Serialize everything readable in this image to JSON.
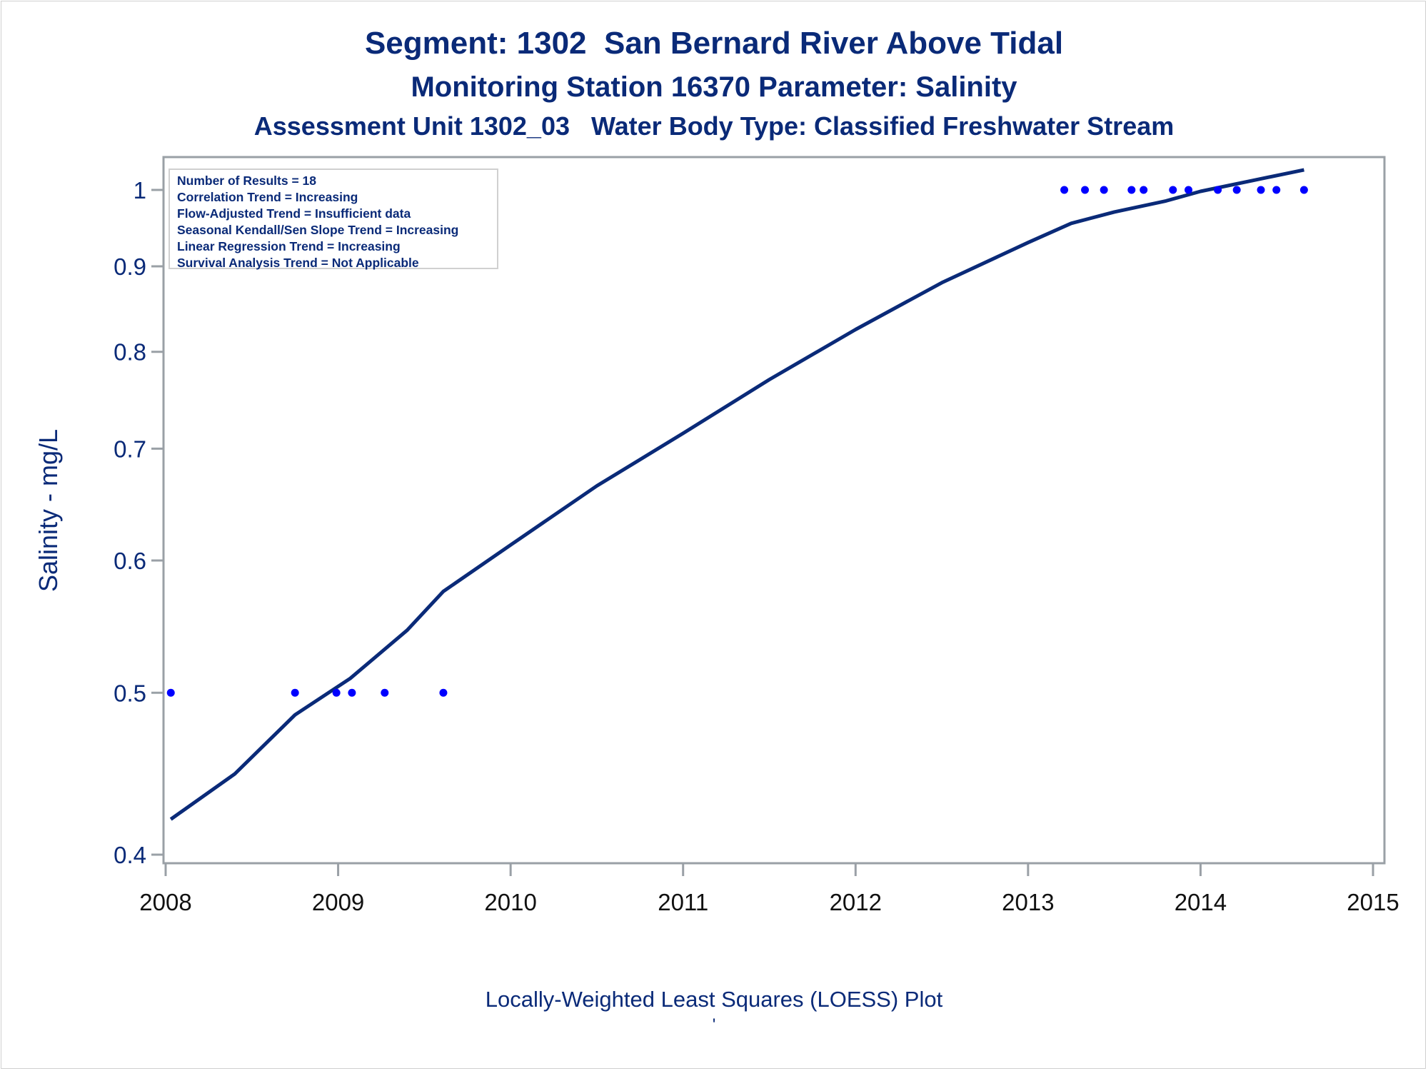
{
  "titles": {
    "line1": "Segment: 1302  San Bernard River Above Tidal",
    "line2": "Monitoring Station 16370 Parameter: Salinity",
    "line3": "Assessment Unit 1302_03   Water Body Type: Classified Freshwater Stream"
  },
  "footer": {
    "plot_type": "Locally-Weighted Least Squares (LOESS) Plot",
    "mark": "'"
  },
  "info_box": {
    "lines": [
      "Number of Results = 18",
      "Correlation Trend = Increasing",
      "Flow-Adjusted Trend = Insufficient data",
      "Seasonal Kendall/Sen Slope Trend = Increasing",
      "Linear Regression Trend = Increasing",
      "Survival Analysis Trend = Not Applicable"
    ]
  },
  "colors": {
    "title_text": "#0a2a78",
    "loess_line": "#0a2a78",
    "points": "#0000ff",
    "axis": "#9aa0a6",
    "x_tick_labels": "#111111"
  },
  "chart_data": {
    "type": "scatter",
    "title": "Segment: 1302  San Bernard River Above Tidal",
    "xlabel": "",
    "ylabel": "Salinity - mg/L",
    "y_scale": "log",
    "xlim": [
      2008,
      2015
    ],
    "ylim": [
      0.4,
      1.04
    ],
    "x_ticks": [
      2008,
      2009,
      2010,
      2011,
      2012,
      2013,
      2014,
      2015
    ],
    "x_tick_labels": [
      "2008",
      "2009",
      "2010",
      "2011",
      "2012",
      "2013",
      "2014",
      "2015"
    ],
    "y_ticks": [
      0.4,
      0.5,
      0.6,
      0.7,
      0.8,
      0.9,
      1
    ],
    "y_tick_labels": [
      "0.4",
      "0.5",
      "0.6",
      "0.7",
      "0.8",
      "0.9",
      "1"
    ],
    "grid": false,
    "series": [
      {
        "name": "Observed Salinity",
        "kind": "scatter",
        "points": [
          {
            "x": 2008.03,
            "y": 0.5
          },
          {
            "x": 2008.75,
            "y": 0.5
          },
          {
            "x": 2008.99,
            "y": 0.5
          },
          {
            "x": 2009.08,
            "y": 0.5
          },
          {
            "x": 2009.27,
            "y": 0.5
          },
          {
            "x": 2009.61,
            "y": 0.5
          },
          {
            "x": 2013.21,
            "y": 1
          },
          {
            "x": 2013.33,
            "y": 1
          },
          {
            "x": 2013.44,
            "y": 1
          },
          {
            "x": 2013.6,
            "y": 1
          },
          {
            "x": 2013.67,
            "y": 1
          },
          {
            "x": 2013.84,
            "y": 1
          },
          {
            "x": 2013.93,
            "y": 1
          },
          {
            "x": 2014.1,
            "y": 1
          },
          {
            "x": 2014.21,
            "y": 1
          },
          {
            "x": 2014.35,
            "y": 1
          },
          {
            "x": 2014.44,
            "y": 1
          },
          {
            "x": 2014.6,
            "y": 1
          }
        ]
      },
      {
        "name": "LOESS Fit",
        "kind": "line",
        "points": [
          {
            "x": 2008.03,
            "y": 0.42
          },
          {
            "x": 2008.4,
            "y": 0.447
          },
          {
            "x": 2008.75,
            "y": 0.485
          },
          {
            "x": 2009.07,
            "y": 0.51
          },
          {
            "x": 2009.4,
            "y": 0.545
          },
          {
            "x": 2009.61,
            "y": 0.575
          },
          {
            "x": 2010.02,
            "y": 0.615
          },
          {
            "x": 2010.5,
            "y": 0.665
          },
          {
            "x": 2011.0,
            "y": 0.715
          },
          {
            "x": 2011.5,
            "y": 0.77
          },
          {
            "x": 2012.0,
            "y": 0.825
          },
          {
            "x": 2012.5,
            "y": 0.88
          },
          {
            "x": 2013.0,
            "y": 0.93
          },
          {
            "x": 2013.25,
            "y": 0.955
          },
          {
            "x": 2013.5,
            "y": 0.97
          },
          {
            "x": 2013.8,
            "y": 0.985
          },
          {
            "x": 2014.0,
            "y": 0.998
          },
          {
            "x": 2014.3,
            "y": 1.013
          },
          {
            "x": 2014.6,
            "y": 1.028
          }
        ]
      }
    ],
    "annotations": [
      "Number of Results = 18",
      "Correlation Trend = Increasing",
      "Flow-Adjusted Trend = Insufficient data",
      "Seasonal Kendall/Sen Slope Trend = Increasing",
      "Linear Regression Trend = Increasing",
      "Survival Analysis Trend = Not Applicable"
    ],
    "footnote": "Locally-Weighted Least Squares (LOESS) Plot"
  }
}
